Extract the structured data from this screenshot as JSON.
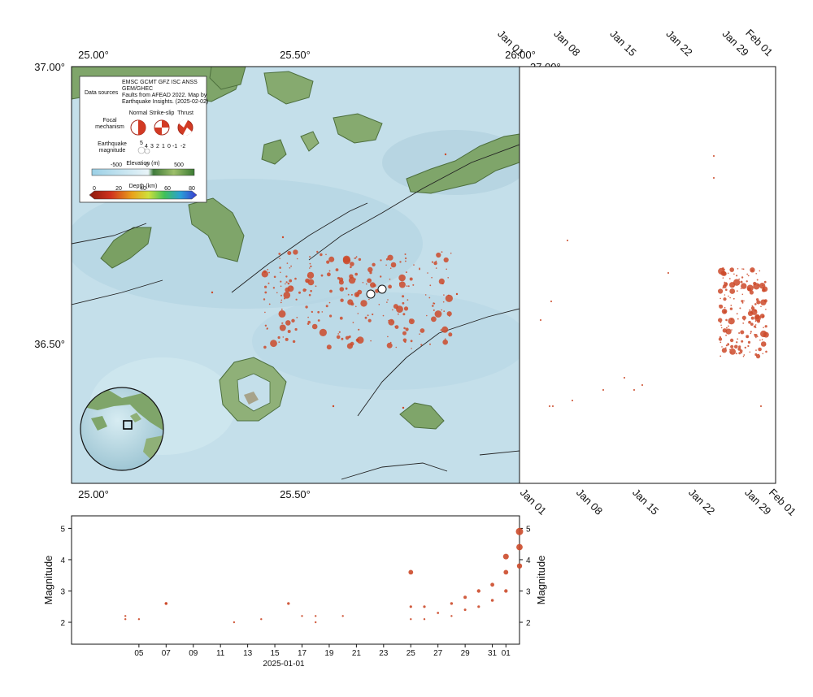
{
  "map": {
    "lon_labels": [
      "25.00°",
      "25.50°",
      "26.00°"
    ],
    "lat_labels": [
      "37.00°",
      "36.50°"
    ],
    "lon_range": [
      25.0,
      26.0
    ],
    "lat_range": [
      36.25,
      37.0
    ],
    "colors": {
      "sea": "#c4dfea",
      "land": "#7fa56a",
      "land_dark": "#4d6f3d",
      "fault": "#222222",
      "quake": "#cc4a2a"
    }
  },
  "legend": {
    "data_sources_label": "Data sources",
    "data_sources_text": [
      "EMSC GCMT GFZ ISC ANSS",
      "GEM/GHEC",
      "Faults from AFEAD 2022.  Map by",
      "Earthquake Insights. (2025-02-02)"
    ],
    "mechanism_label": [
      "Focal",
      "mechanism"
    ],
    "mechanism_types": [
      "Normal",
      "Strike-slip",
      "Thrust"
    ],
    "magnitude_label": [
      "Earthquake",
      "magnitude"
    ],
    "magnitude_values": [
      "5",
      "4",
      "3",
      "2",
      "1",
      "0",
      "-1",
      "-2"
    ],
    "elevation_title": "Elevation (m)",
    "elevation_ticks": [
      "-500",
      "0",
      "500"
    ],
    "depth_title": "Depth (km)",
    "depth_ticks": [
      "0",
      "20",
      "40",
      "60",
      "80"
    ]
  },
  "time_axis": {
    "date_labels": [
      "Jan 01",
      "Jan 08",
      "Jan 15",
      "Jan 22",
      "Jan 29",
      "Feb 01"
    ],
    "day_labels": [
      "05",
      "07",
      "09",
      "11",
      "13",
      "15",
      "17",
      "19",
      "21",
      "23",
      "25",
      "27",
      "29",
      "31",
      "01"
    ],
    "date_caption": "2025-01-01"
  },
  "chart_data": {
    "type": "scatter",
    "x_range": [
      "2025-01-01",
      "2025-02-02"
    ],
    "ylabel": "Magnitude",
    "ylim": [
      1.3,
      5.4
    ],
    "yticks": [
      2,
      3,
      4,
      5
    ],
    "series": [
      {
        "points": [
          [
            "2025-01-04",
            2.1
          ],
          [
            "2025-01-04",
            2.2
          ],
          [
            "2025-01-05",
            2.1
          ],
          [
            "2025-01-07",
            2.6
          ],
          [
            "2025-01-07",
            2.6
          ],
          [
            "2025-01-12",
            2.0
          ],
          [
            "2025-01-14",
            2.1
          ],
          [
            "2025-01-16",
            2.6
          ],
          [
            "2025-01-17",
            2.2
          ],
          [
            "2025-01-18",
            2.2
          ],
          [
            "2025-01-18",
            2.0
          ],
          [
            "2025-01-20",
            2.2
          ],
          [
            "2025-01-25",
            3.6
          ],
          [
            "2025-01-25",
            2.5
          ],
          [
            "2025-01-25",
            2.1
          ],
          [
            "2025-01-26",
            2.5
          ],
          [
            "2025-01-26",
            2.1
          ],
          [
            "2025-01-27",
            2.3
          ],
          [
            "2025-01-28",
            2.6
          ],
          [
            "2025-01-28",
            2.2
          ],
          [
            "2025-01-29",
            2.8
          ],
          [
            "2025-01-29",
            2.4
          ],
          [
            "2025-01-30",
            3.0
          ],
          [
            "2025-01-30",
            2.5
          ],
          [
            "2025-01-31",
            3.2
          ],
          [
            "2025-01-31",
            2.7
          ],
          [
            "2025-02-01",
            3.6
          ],
          [
            "2025-02-01",
            3.0
          ],
          [
            "2025-02-01",
            4.1
          ],
          [
            "2025-02-02",
            4.4
          ],
          [
            "2025-02-02",
            4.9
          ],
          [
            "2025-02-02",
            3.8
          ]
        ]
      }
    ]
  }
}
